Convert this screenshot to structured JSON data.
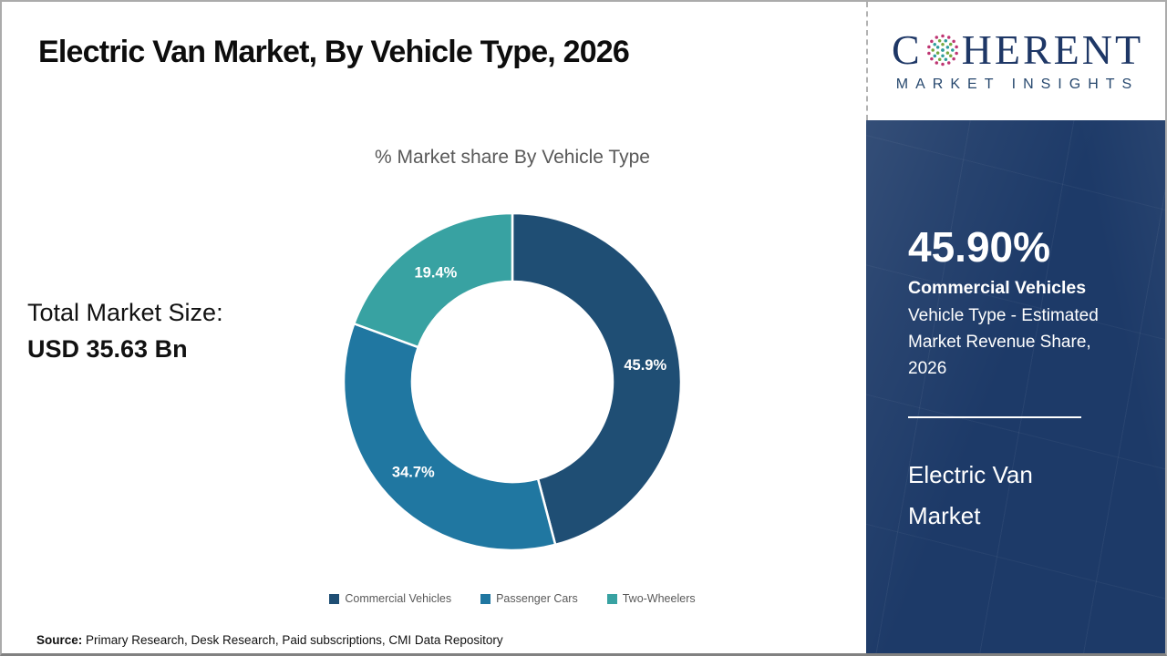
{
  "header": {
    "title": "Electric Van Market, By Vehicle Type, 2026"
  },
  "logo": {
    "part1": "C",
    "part2": "HERENT",
    "subtitle": "MARKET INSIGHTS",
    "globe_icon": "dotted-globe",
    "text_color": "#1e3766"
  },
  "chart_data": {
    "type": "pie",
    "subtype": "donut",
    "title": "% Market share By Vehicle Type",
    "categories": [
      "Commercial Vehicles",
      "Passenger Cars",
      "Two-Wheelers"
    ],
    "values": [
      45.9,
      34.7,
      19.4
    ],
    "labels": [
      "45.9%",
      "34.7%",
      "19.4%"
    ],
    "colors": [
      "#1f4e74",
      "#2077a1",
      "#38a2a2"
    ],
    "start_angle_deg": 0,
    "direction": "clockwise",
    "legend_position": "bottom"
  },
  "left_panel": {
    "total_label": "Total Market Size:",
    "total_value": "USD 35.63 Bn"
  },
  "sidebar": {
    "stat_value": "45.90%",
    "stat_label": "Commercial Vehicles",
    "stat_desc": "Vehicle Type - Estimated Market Revenue Share, 2026",
    "product": "Electric Van Market",
    "background_color": "#1d3a68"
  },
  "footer": {
    "source_label": "Source:",
    "source_text": " Primary Research, Desk Research, Paid subscriptions, CMI Data Repository"
  }
}
